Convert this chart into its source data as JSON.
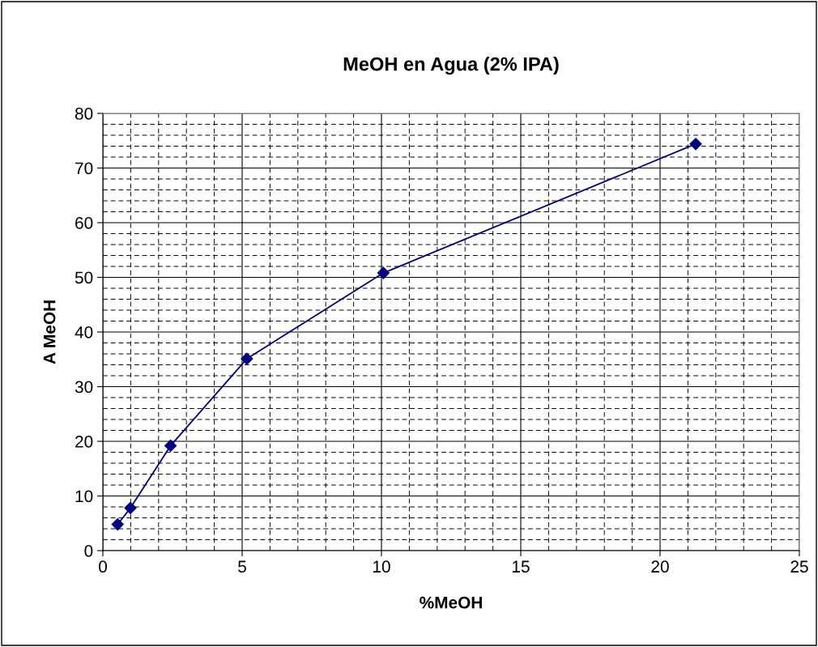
{
  "chart_data": {
    "type": "line",
    "title": "MeOH en Agua (2% IPA)",
    "xlabel": "%MeOH",
    "ylabel": "A MeOH",
    "x": [
      0.53,
      0.99,
      2.43,
      5.17,
      10.07,
      21.28
    ],
    "series": [
      {
        "color": "#000080",
        "values": [
          4.8,
          7.8,
          19.2,
          35.1,
          50.8,
          74.4
        ]
      }
    ],
    "xlim": [
      0,
      25
    ],
    "xticks": [
      0,
      5,
      10,
      15,
      20,
      25
    ],
    "ylim": [
      0,
      80
    ],
    "yticks": [
      0,
      10,
      20,
      30,
      40,
      50,
      60,
      70,
      80
    ],
    "grid": true,
    "marker": "diamond",
    "line_style": "solid",
    "legend": false
  }
}
